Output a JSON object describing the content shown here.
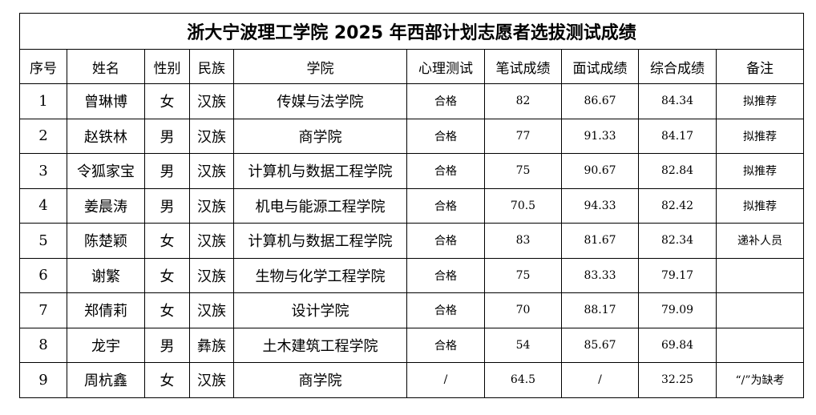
{
  "title": "浙大宁波理工学院 2025 年西部计划志愿者选拔测试成绩",
  "headers": [
    "序号",
    "姓名",
    "性别",
    "民族",
    "学院",
    "心理测试",
    "笔试成绩",
    "面试成绩",
    "综合成绩",
    "备注"
  ],
  "rows": [
    [
      "1",
      "曾琳博",
      "女",
      "汉族",
      "传媒与法学院",
      "合格",
      "82",
      "86.67",
      "84.34",
      "拟推荐"
    ],
    [
      "2",
      "赵铁林",
      "男",
      "汉族",
      "商学院",
      "合格",
      "77",
      "91.33",
      "84.17",
      "拟推荐"
    ],
    [
      "3",
      "令狐家宝",
      "男",
      "汉族",
      "计算机与数据工程学院",
      "合格",
      "75",
      "90.67",
      "82.84",
      "拟推荐"
    ],
    [
      "4",
      "姜晨涛",
      "男",
      "汉族",
      "机电与能源工程学院",
      "合格",
      "70.5",
      "94.33",
      "82.42",
      "拟推荐"
    ],
    [
      "5",
      "陈楚颖",
      "女",
      "汉族",
      "计算机与数据工程学院",
      "合格",
      "83",
      "81.67",
      "82.34",
      "递补人员"
    ],
    [
      "6",
      "谢繁",
      "女",
      "汉族",
      "生物与化学工程学院",
      "合格",
      "75",
      "83.33",
      "79.17",
      ""
    ],
    [
      "7",
      "郑倩莉",
      "女",
      "汉族",
      "设计学院",
      "合格",
      "70",
      "88.17",
      "79.09",
      ""
    ],
    [
      "8",
      "龙宇",
      "男",
      "彝族",
      "土木建筑工程学院",
      "合格",
      "54",
      "85.67",
      "69.84",
      ""
    ],
    [
      "9",
      "周杭鑫",
      "女",
      "汉族",
      "商学院",
      "/",
      "64.5",
      "/",
      "32.25",
      "“/”为缺考"
    ]
  ]
}
